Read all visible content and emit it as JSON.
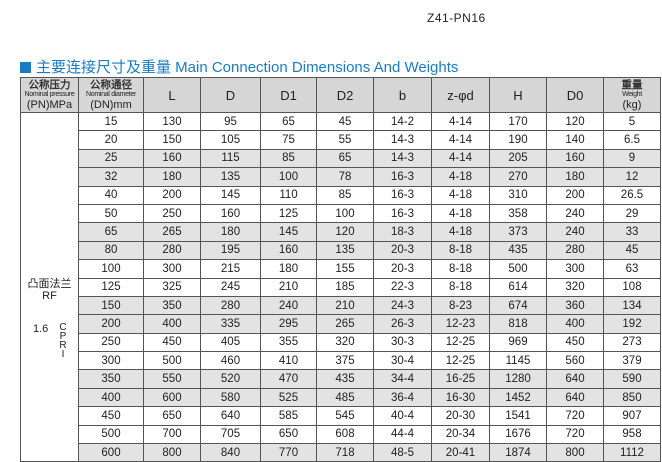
{
  "model": "Z41-PN16",
  "section_title": "主要连接尺寸及重量 Main Connection Dimensions And Weights",
  "accent_color": "#1a7cc1",
  "headers": {
    "pn": {
      "cn": "公称压力",
      "en": "Nominal pressure",
      "unit": "(PN)MPa"
    },
    "dn": {
      "cn": "公称通径",
      "en": "Nominal diameter",
      "unit": "(DN)mm"
    },
    "cols": [
      "L",
      "D",
      "D1",
      "D2",
      "b",
      "z-φd",
      "H",
      "D0"
    ],
    "weight": {
      "cn": "重量",
      "en": "Weight",
      "unit": "(kg)"
    }
  },
  "group": {
    "flange_cn": "凸面法兰",
    "flange_en": "RF",
    "pressure": "1.6",
    "material": "CPRI"
  },
  "rows": [
    [
      "15",
      "130",
      "95",
      "65",
      "45",
      "14-2",
      "4-14",
      "170",
      "120",
      "5"
    ],
    [
      "20",
      "150",
      "105",
      "75",
      "55",
      "14-3",
      "4-14",
      "190",
      "140",
      "6.5"
    ],
    [
      "25",
      "160",
      "115",
      "85",
      "65",
      "14-3",
      "4-14",
      "205",
      "160",
      "9"
    ],
    [
      "32",
      "180",
      "135",
      "100",
      "78",
      "16-3",
      "4-18",
      "270",
      "180",
      "12"
    ],
    [
      "40",
      "200",
      "145",
      "110",
      "85",
      "16-3",
      "4-18",
      "310",
      "200",
      "26.5"
    ],
    [
      "50",
      "250",
      "160",
      "125",
      "100",
      "16-3",
      "4-18",
      "358",
      "240",
      "29"
    ],
    [
      "65",
      "265",
      "180",
      "145",
      "120",
      "18-3",
      "4-18",
      "373",
      "240",
      "33"
    ],
    [
      "80",
      "280",
      "195",
      "160",
      "135",
      "20-3",
      "8-18",
      "435",
      "280",
      "45"
    ],
    [
      "100",
      "300",
      "215",
      "180",
      "155",
      "20-3",
      "8-18",
      "500",
      "300",
      "63"
    ],
    [
      "125",
      "325",
      "245",
      "210",
      "185",
      "22-3",
      "8-18",
      "614",
      "320",
      "108"
    ],
    [
      "150",
      "350",
      "280",
      "240",
      "210",
      "24-3",
      "8-23",
      "674",
      "360",
      "134"
    ],
    [
      "200",
      "400",
      "335",
      "295",
      "265",
      "26-3",
      "12-23",
      "818",
      "400",
      "192"
    ],
    [
      "250",
      "450",
      "405",
      "355",
      "320",
      "30-3",
      "12-25",
      "969",
      "450",
      "273"
    ],
    [
      "300",
      "500",
      "460",
      "410",
      "375",
      "30-4",
      "12-25",
      "1145",
      "560",
      "379"
    ],
    [
      "350",
      "550",
      "520",
      "470",
      "435",
      "34-4",
      "16-25",
      "1280",
      "640",
      "590"
    ],
    [
      "400",
      "600",
      "580",
      "525",
      "485",
      "36-4",
      "16-30",
      "1452",
      "640",
      "850"
    ],
    [
      "450",
      "650",
      "640",
      "585",
      "545",
      "40-4",
      "20-30",
      "1541",
      "720",
      "907"
    ],
    [
      "500",
      "700",
      "705",
      "650",
      "608",
      "44-4",
      "20-34",
      "1676",
      "720",
      "958"
    ],
    [
      "600",
      "800",
      "840",
      "770",
      "718",
      "48-5",
      "20-41",
      "1874",
      "800",
      "1112"
    ]
  ],
  "shaded_rows": [
    2,
    3,
    6,
    7,
    10,
    11,
    14,
    15,
    18
  ]
}
